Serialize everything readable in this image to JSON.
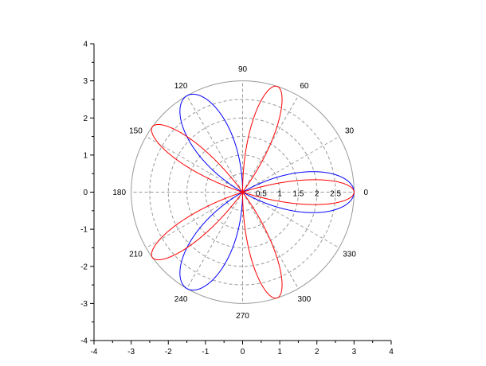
{
  "chart_data": {
    "type": "line",
    "title": "",
    "xlabel": "",
    "ylabel": "",
    "xlim": [
      -4,
      4
    ],
    "ylim": [
      -4,
      4
    ],
    "x_ticks": [
      "-4",
      "-3",
      "-2",
      "-1",
      "0",
      "1",
      "2",
      "3",
      "4"
    ],
    "y_ticks": [
      "-4",
      "-3",
      "-2",
      "-1",
      "0",
      "1",
      "2",
      "3",
      "4"
    ],
    "polar_grid": {
      "r_max": 3,
      "radial_ticks": [
        "0.5",
        "1",
        "1.5",
        "2",
        "2.5"
      ],
      "angle_labels": [
        "0",
        "30",
        "60",
        "90",
        "120",
        "150",
        "180",
        "210",
        "240",
        "270",
        "300",
        "330"
      ]
    },
    "series": [
      {
        "color": "#0000ff",
        "equation": "r = 3 cos(3θ)",
        "amplitude": 3,
        "k": 3
      },
      {
        "color": "#ff0000",
        "equation": "r = 3 cos(5θ)",
        "amplitude": 3,
        "k": 5
      }
    ]
  }
}
